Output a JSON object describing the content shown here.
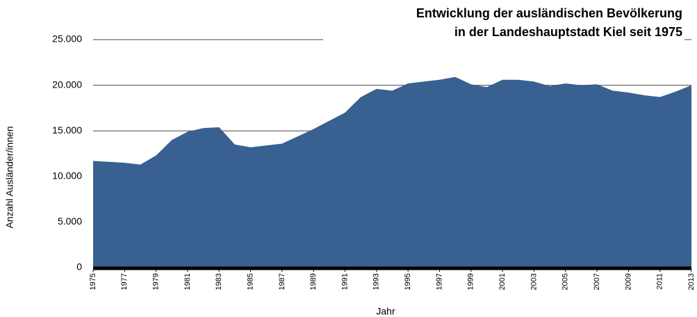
{
  "chart_data": {
    "type": "area",
    "title": [
      "Entwicklung der ausländischen Bevölkerung",
      "in der Landeshauptstadt Kiel seit 1975"
    ],
    "x_label": "Jahr",
    "y_label": "Anzahl Ausländer/innen",
    "x": [
      1975,
      1976,
      1977,
      1978,
      1979,
      1980,
      1981,
      1982,
      1983,
      1984,
      1985,
      1986,
      1987,
      1988,
      1989,
      1990,
      1991,
      1992,
      1993,
      1994,
      1995,
      1996,
      1997,
      1998,
      1999,
      2000,
      2001,
      2002,
      2003,
      2004,
      2005,
      2006,
      2007,
      2008,
      2009,
      2010,
      2011,
      2012,
      2013
    ],
    "values": [
      11700,
      11600,
      11500,
      11300,
      12300,
      14000,
      14900,
      15300,
      15400,
      13500,
      13200,
      13400,
      13600,
      14400,
      15200,
      16100,
      17000,
      18700,
      19600,
      19400,
      20200,
      20400,
      20600,
      20900,
      20100,
      19800,
      20600,
      20600,
      20400,
      19900,
      20200,
      20000,
      20100,
      19400,
      19200,
      18900,
      18700,
      19300,
      20000
    ],
    "color": "#386090",
    "xlim": [
      1975,
      2013
    ],
    "xticks": [
      1975,
      1977,
      1979,
      1981,
      1983,
      1985,
      1987,
      1989,
      1991,
      1993,
      1995,
      1997,
      1999,
      2001,
      2003,
      2005,
      2007,
      2009,
      2011,
      2013
    ],
    "ylim": [
      0,
      25000
    ],
    "yticks": [
      0,
      {
        "value": 5000,
        "label": "5.000"
      },
      {
        "value": 10000,
        "label": "10.000"
      },
      {
        "value": 15000,
        "label": "15.000"
      },
      {
        "value": 20000,
        "label": "20.000"
      },
      {
        "value": 25000,
        "label": "25.000"
      }
    ],
    "grid": true
  }
}
